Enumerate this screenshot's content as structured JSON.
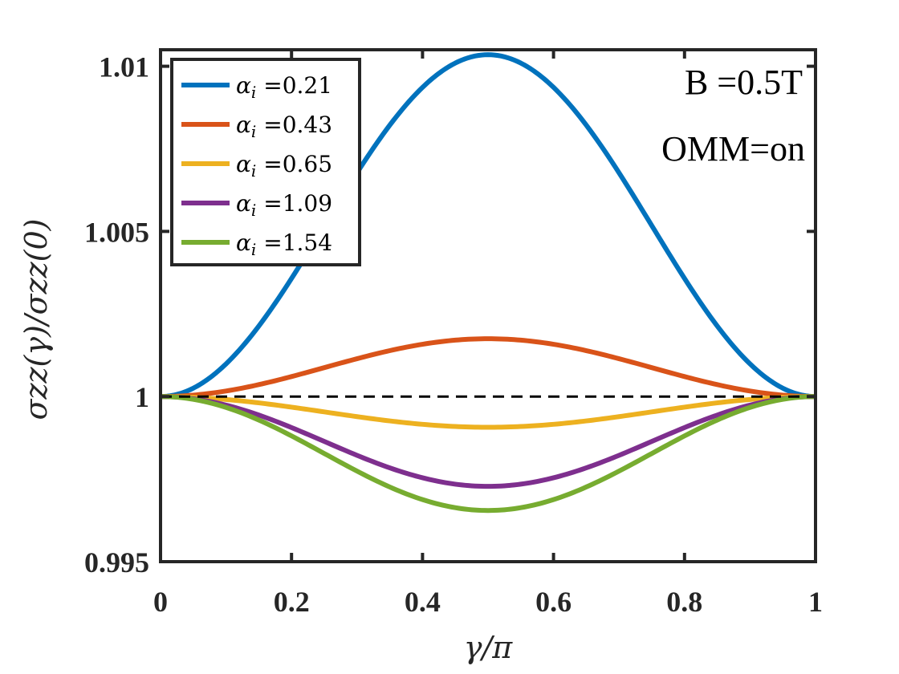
{
  "chart_data": {
    "type": "line",
    "xlabel": "γ/π",
    "ylabel": "σzz(γ)/σzz(0)",
    "xlim": [
      0,
      1
    ],
    "ylim": [
      0.995,
      1.0105
    ],
    "xticks": [
      0,
      0.2,
      0.4,
      0.6,
      0.8,
      1
    ],
    "xtick_labels": [
      "0",
      "0.2",
      "0.4",
      "0.6",
      "0.8",
      "1"
    ],
    "yticks": [
      0.995,
      1,
      1.005,
      1.01
    ],
    "ytick_labels": [
      "0.995",
      "1",
      "1.005",
      "1.01"
    ],
    "annotations": [
      "B =0.5T",
      "OMM=on"
    ],
    "reference_line": {
      "y": 1,
      "style": "dashed",
      "color": "#000000"
    },
    "legend_position": "top-left",
    "series": [
      {
        "name": "α_i =0.21",
        "alpha_label": "α",
        "sub_label": "i",
        "value_label": " =0.21",
        "color": "#0072BD",
        "amplitude": 0.01035,
        "shape": "sin2"
      },
      {
        "name": "α_i =0.43",
        "alpha_label": "α",
        "sub_label": "i",
        "value_label": " =0.43",
        "color": "#D95319",
        "amplitude": 0.00175,
        "shape": "sin2"
      },
      {
        "name": "α_i =0.65",
        "alpha_label": "α",
        "sub_label": "i",
        "value_label": " =0.65",
        "color": "#EDB120",
        "amplitude": -0.00093,
        "shape": "sin2"
      },
      {
        "name": "α_i =1.09",
        "alpha_label": "α",
        "sub_label": "i",
        "value_label": " =1.09",
        "color": "#7E2F8E",
        "amplitude": -0.00272,
        "shape": "sin2"
      },
      {
        "name": "α_i =1.54",
        "alpha_label": "α",
        "sub_label": "i",
        "value_label": " =1.54",
        "color": "#77AC30",
        "amplitude": -0.00345,
        "shape": "sin2"
      }
    ]
  }
}
